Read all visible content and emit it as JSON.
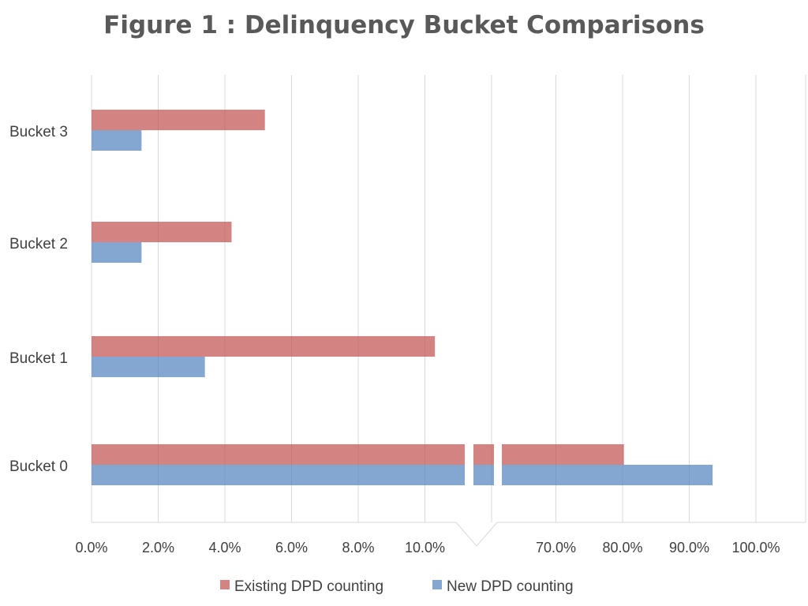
{
  "chart_data": {
    "type": "bar",
    "orientation": "horizontal",
    "title": "Figure 1 : Delinquency Bucket Comparisons",
    "categories": [
      "Bucket 0",
      "Bucket 1",
      "Bucket 2",
      "Bucket 3"
    ],
    "series": [
      {
        "name": "Existing DPD counting",
        "color": "#c0504d",
        "values": [
          80.2,
          10.3,
          4.2,
          5.2
        ]
      },
      {
        "name": "New DPD counting",
        "color": "#4f81bd",
        "values": [
          93.5,
          3.4,
          1.5,
          1.5
        ]
      }
    ],
    "x_axis": {
      "broken": true,
      "lower_segment": [
        0,
        12
      ],
      "upper_segment": [
        60,
        100
      ],
      "tick_labels": [
        "0.0%",
        "2.0%",
        "4.0%",
        "6.0%",
        "8.0%",
        "10.0%",
        "70.0%",
        "80.0%",
        "90.0%",
        "100.0%"
      ]
    },
    "grid": "vertical",
    "legend_position": "bottom"
  }
}
